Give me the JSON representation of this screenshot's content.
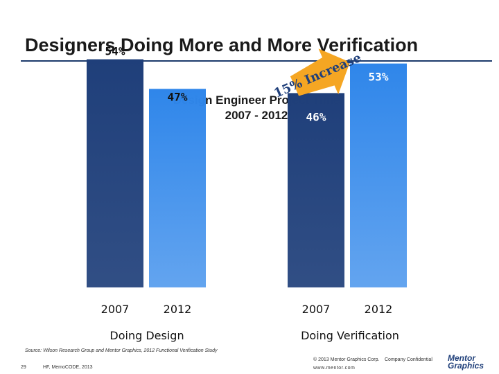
{
  "slide": {
    "title": "Designers Doing More and More Verification",
    "chart_title_line1": "Design Engineer Project Time",
    "chart_title_line2": "2007 - 2012",
    "arrow_label": "15% Increase",
    "source": "Source: Wilson Research Group and Mentor Graphics, 2012 Functional Verification Study",
    "page_number": "29",
    "footer_left": "HF, MemoCODE, 2013",
    "copyright": "© 2013 Mentor Graphics Corp.",
    "confidential": "Company Confidential",
    "url": "www.mentor.com",
    "logo_line1": "Mentor",
    "logo_line2": "Graphics"
  },
  "colors": {
    "bar_2007": "#1f3f7a",
    "bar_2012": "#2f86ea",
    "arrow": "#f5a623"
  },
  "chart_data": {
    "type": "bar",
    "title": "Design Engineer Project Time 2007 - 2012",
    "categories": [
      "Doing Design",
      "Doing Verification"
    ],
    "series": [
      {
        "name": "2007",
        "values": [
          54,
          46
        ]
      },
      {
        "name": "2012",
        "values": [
          47,
          53
        ]
      }
    ],
    "value_labels": [
      [
        "54%",
        "47%"
      ],
      [
        "46%",
        "53%"
      ]
    ],
    "ylim": [
      0,
      60
    ],
    "grid": false
  }
}
